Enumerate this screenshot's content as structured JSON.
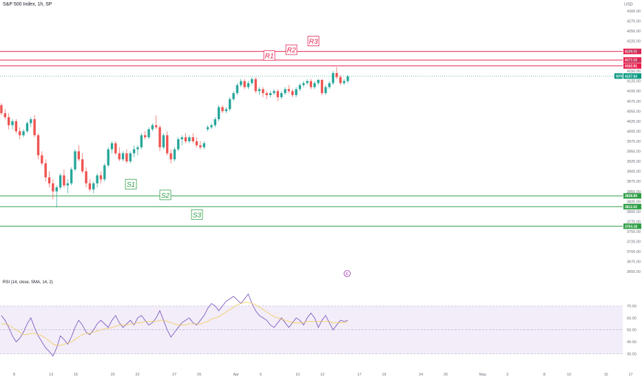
{
  "header": {
    "symbol_title": "S&P 500 Index, 1h, SP",
    "currency": "USD",
    "rsi_title": "RSI (14, close, SMA, 14, 2)",
    "event_marker": "E"
  },
  "colors": {
    "up": "#26a69a",
    "down": "#ef5350",
    "resistance": "#e91e4d",
    "support": "#2e9e45",
    "rsi_line": "#7e57c2",
    "rsi_ma": "#f2c94c",
    "rsi_band": "#ede7f6",
    "price_tag": "#089981"
  },
  "chart_data": [
    {
      "type": "candlestick",
      "title": "S&P 500 Index, 1h, SP",
      "y_unit": "USD",
      "ylim": [
        3640,
        4310
      ],
      "y_ticks": [
        4300,
        4275,
        4250,
        4225,
        4200,
        4175,
        4150,
        4125,
        4100,
        4075,
        4050,
        4025,
        4000,
        3975,
        3950,
        3925,
        3900,
        3875,
        3850,
        3825,
        3800,
        3775,
        3750,
        3725,
        3700,
        3675,
        3650
      ],
      "x_ticks": [
        {
          "label": "8",
          "x": 0
        },
        {
          "label": "13",
          "x": 3
        },
        {
          "label": "15",
          "x": 5
        },
        {
          "label": "20",
          "x": 8
        },
        {
          "label": "22",
          "x": 10
        },
        {
          "label": "27",
          "x": 13
        },
        {
          "label": "29",
          "x": 15
        },
        {
          "label": "Apr",
          "x": 18
        },
        {
          "label": "5",
          "x": 20
        },
        {
          "label": "10",
          "x": 23
        },
        {
          "label": "12",
          "x": 25
        },
        {
          "label": "17",
          "x": 28
        },
        {
          "label": "19",
          "x": 30
        },
        {
          "label": "24",
          "x": 33
        },
        {
          "label": "26",
          "x": 35
        },
        {
          "label": "May",
          "x": 38
        },
        {
          "label": "3",
          "x": 40
        },
        {
          "label": "8",
          "x": 43
        },
        {
          "label": "10",
          "x": 45
        },
        {
          "label": "15",
          "x": 48
        },
        {
          "label": "17",
          "x": 50
        }
      ],
      "candles": [
        [
          4065,
          4070,
          4040,
          4045
        ],
        [
          4045,
          4055,
          4030,
          4035
        ],
        [
          4035,
          4045,
          4005,
          4015
        ],
        [
          4015,
          4030,
          4005,
          4025
        ],
        [
          4025,
          4030,
          3995,
          4000
        ],
        [
          4000,
          4010,
          3980,
          3990
        ],
        [
          3990,
          4005,
          3985,
          4000
        ],
        [
          4000,
          4025,
          3995,
          4020
        ],
        [
          4020,
          4035,
          4010,
          4030
        ],
        [
          4030,
          4040,
          3985,
          3990
        ],
        [
          3990,
          3995,
          3930,
          3940
        ],
        [
          3940,
          3950,
          3915,
          3920
        ],
        [
          3920,
          3930,
          3875,
          3885
        ],
        [
          3885,
          3900,
          3860,
          3870
        ],
        [
          3870,
          3880,
          3830,
          3850
        ],
        [
          3850,
          3865,
          3810,
          3860
        ],
        [
          3860,
          3895,
          3855,
          3890
        ],
        [
          3890,
          3905,
          3860,
          3865
        ],
        [
          3865,
          3880,
          3845,
          3870
        ],
        [
          3870,
          3910,
          3865,
          3905
        ],
        [
          3905,
          3955,
          3900,
          3950
        ],
        [
          3950,
          3965,
          3925,
          3930
        ],
        [
          3930,
          3945,
          3895,
          3900
        ],
        [
          3900,
          3910,
          3860,
          3870
        ],
        [
          3870,
          3880,
          3850,
          3855
        ],
        [
          3855,
          3875,
          3845,
          3870
        ],
        [
          3870,
          3895,
          3860,
          3890
        ],
        [
          3890,
          3900,
          3870,
          3880
        ],
        [
          3880,
          3920,
          3875,
          3915
        ],
        [
          3915,
          3960,
          3910,
          3955
        ],
        [
          3955,
          3975,
          3945,
          3970
        ],
        [
          3970,
          3975,
          3940,
          3945
        ],
        [
          3945,
          3960,
          3925,
          3930
        ],
        [
          3930,
          3950,
          3925,
          3945
        ],
        [
          3945,
          3955,
          3920,
          3925
        ],
        [
          3925,
          3950,
          3920,
          3945
        ],
        [
          3945,
          3965,
          3935,
          3955
        ],
        [
          3955,
          3965,
          3940,
          3960
        ],
        [
          3960,
          3995,
          3955,
          3990
        ],
        [
          3990,
          4000,
          3980,
          3985
        ],
        [
          3985,
          4010,
          3980,
          4005
        ],
        [
          4005,
          4020,
          4000,
          4015
        ],
        [
          4015,
          4040,
          4005,
          4010
        ],
        [
          4010,
          4015,
          3950,
          3960
        ],
        [
          3960,
          3995,
          3955,
          3990
        ],
        [
          3990,
          4000,
          3940,
          3945
        ],
        [
          3945,
          3955,
          3920,
          3930
        ],
        [
          3930,
          3960,
          3925,
          3955
        ],
        [
          3955,
          3985,
          3950,
          3980
        ],
        [
          3980,
          3990,
          3965,
          3985
        ],
        [
          3985,
          3995,
          3970,
          3975
        ],
        [
          3975,
          3990,
          3970,
          3985
        ],
        [
          3985,
          3995,
          3970,
          3975
        ],
        [
          3975,
          3985,
          3960,
          3965
        ],
        [
          3965,
          3975,
          3955,
          3960
        ],
        [
          3960,
          3975,
          3955,
          3970
        ],
        [
          4005,
          4015,
          4000,
          4010
        ],
        [
          4010,
          4020,
          4005,
          4015
        ],
        [
          4015,
          4035,
          4010,
          4030
        ],
        [
          4030,
          4065,
          4025,
          4060
        ],
        [
          4060,
          4065,
          4045,
          4050
        ],
        [
          4050,
          4060,
          4045,
          4055
        ],
        [
          4055,
          4085,
          4050,
          4080
        ],
        [
          4080,
          4100,
          4075,
          4095
        ],
        [
          4095,
          4120,
          4090,
          4115
        ],
        [
          4115,
          4130,
          4110,
          4125
        ],
        [
          4125,
          4130,
          4105,
          4110
        ],
        [
          4110,
          4125,
          4105,
          4120
        ],
        [
          4120,
          4135,
          4115,
          4130
        ],
        [
          4130,
          4135,
          4095,
          4100
        ],
        [
          4100,
          4110,
          4090,
          4105
        ],
        [
          4105,
          4110,
          4085,
          4095
        ],
        [
          4095,
          4100,
          4080,
          4090
        ],
        [
          4090,
          4100,
          4085,
          4095
        ],
        [
          4095,
          4105,
          4090,
          4100
        ],
        [
          4100,
          4105,
          4075,
          4085
        ],
        [
          4085,
          4100,
          4080,
          4095
        ],
        [
          4095,
          4110,
          4090,
          4105
        ],
        [
          4105,
          4115,
          4095,
          4100
        ],
        [
          4100,
          4105,
          4085,
          4090
        ],
        [
          4090,
          4110,
          4085,
          4105
        ],
        [
          4105,
          4120,
          4100,
          4115
        ],
        [
          4115,
          4125,
          4110,
          4120
        ],
        [
          4120,
          4130,
          4115,
          4125
        ],
        [
          4125,
          4130,
          4105,
          4110
        ],
        [
          4110,
          4125,
          4105,
          4120
        ],
        [
          4120,
          4130,
          4115,
          4128
        ],
        [
          4128,
          4130,
          4090,
          4095
        ],
        [
          4095,
          4115,
          4090,
          4110
        ],
        [
          4110,
          4125,
          4105,
          4120
        ],
        [
          4120,
          4150,
          4115,
          4145
        ],
        [
          4145,
          4160,
          4130,
          4135
        ],
        [
          4135,
          4140,
          4115,
          4120
        ],
        [
          4120,
          4130,
          4115,
          4125
        ],
        [
          4125,
          4140,
          4120,
          4137
        ]
      ],
      "levels": [
        {
          "label": "R3",
          "value": 4199.0,
          "tag": "4199.00",
          "role": "resistance"
        },
        {
          "label": "R2",
          "value": 4177.53,
          "tag": "4177.53",
          "role": "resistance"
        },
        {
          "label": "R1",
          "value": 4162.81,
          "tag": "4162.81",
          "role": "resistance"
        },
        {
          "label": "S1",
          "value": 3838.89,
          "tag": "3838.89",
          "role": "support"
        },
        {
          "label": "S2",
          "value": 3812.02,
          "tag": "3812.02",
          "role": "support"
        },
        {
          "label": "S3",
          "value": 3763.18,
          "tag": "3763.18",
          "role": "support"
        }
      ],
      "last_price": {
        "symbol": "SPX",
        "value": 4137.63,
        "tag": "4137.63"
      }
    },
    {
      "type": "line",
      "title": "RSI (14, close, SMA, 14, 2)",
      "ylim": [
        25,
        85
      ],
      "y_ticks": [
        70,
        60,
        50,
        40,
        30
      ],
      "band": [
        30,
        70
      ],
      "midline": 50,
      "series": [
        {
          "values": [
            62,
            58,
            52,
            45,
            40,
            43,
            48,
            55,
            60,
            52,
            45,
            40,
            35,
            32,
            28,
            35,
            45,
            42,
            38,
            44,
            52,
            58,
            54,
            48,
            46,
            50,
            55,
            58,
            55,
            52,
            58,
            62,
            56,
            52,
            55,
            58,
            54,
            60,
            62,
            58,
            54,
            56,
            60,
            66,
            58,
            50,
            44,
            48,
            52,
            56,
            58,
            60,
            56,
            54,
            58,
            62,
            68,
            72,
            70,
            66,
            70,
            74,
            76,
            78,
            75,
            72,
            76,
            80,
            72,
            66,
            62,
            60,
            58,
            54,
            52,
            56,
            60,
            56,
            52,
            56,
            60,
            58,
            54,
            60,
            64,
            60,
            52,
            58,
            62,
            56,
            50,
            54,
            58,
            57,
            58
          ]
        },
        {
          "values": [
            55,
            55,
            54,
            52,
            50,
            48,
            46,
            46,
            47,
            47,
            46,
            45,
            43,
            41,
            38,
            37,
            37,
            38,
            39,
            40,
            42,
            44,
            46,
            47,
            47,
            48,
            49,
            50,
            51,
            51,
            52,
            53,
            54,
            54,
            54,
            55,
            55,
            56,
            56,
            57,
            57,
            57,
            57,
            58,
            58,
            57,
            56,
            55,
            54,
            54,
            54,
            55,
            55,
            55,
            55,
            56,
            57,
            59,
            60,
            61,
            63,
            65,
            67,
            69,
            71,
            72,
            73,
            73,
            72,
            71,
            69,
            67,
            65,
            63,
            61,
            60,
            59,
            58,
            57,
            56,
            56,
            56,
            56,
            57,
            57,
            57,
            57,
            57,
            57,
            57,
            56,
            56,
            56,
            56,
            57
          ]
        }
      ]
    }
  ]
}
